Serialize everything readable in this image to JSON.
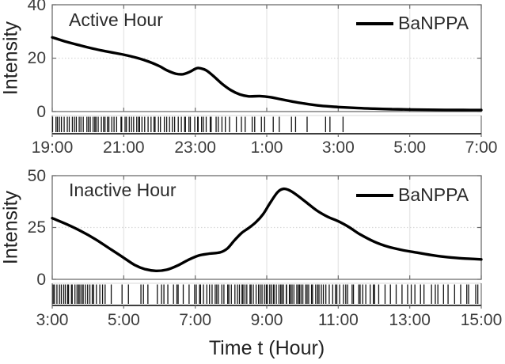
{
  "figure": {
    "xlabel": "Time t (Hour)",
    "background": "#ffffff",
    "curve_color": "#000000",
    "axis_color": "#6e6e6e",
    "grid_vertical_color": "#e8e8e8",
    "grid_horizontal_color": "#d9d9d9",
    "tick_text_color": "#3d3d3d",
    "rug_mark_color": "#141414"
  },
  "chart_data": [
    {
      "type": "line",
      "title": "Active Hour",
      "ylabel": "Intensity",
      "grid": true,
      "legend_position": "top-right",
      "legend": [
        {
          "label": "BaNPPA",
          "color": "#000000"
        }
      ],
      "x_range_hours": [
        19,
        31
      ],
      "ylim": [
        0,
        40
      ],
      "yticks": [
        0,
        20,
        40
      ],
      "xtick_hours": [
        19,
        21,
        23,
        25,
        27,
        29,
        31
      ],
      "xtick_labels": [
        "19:00",
        "21:00",
        "23:00",
        "1:00",
        "3:00",
        "5:00",
        "7:00"
      ],
      "series": [
        {
          "name": "BaNPPA",
          "color": "#000000",
          "points": [
            [
              19,
              27.8
            ],
            [
              19.4,
              26.1
            ],
            [
              19.8,
              24.7
            ],
            [
              20.2,
              23.4
            ],
            [
              20.6,
              22.3
            ],
            [
              21,
              21.3
            ],
            [
              21.4,
              20.0
            ],
            [
              21.7,
              18.7
            ],
            [
              22,
              17.0
            ],
            [
              22.2,
              15.5
            ],
            [
              22.45,
              14.2
            ],
            [
              22.65,
              14.0
            ],
            [
              22.85,
              14.9
            ],
            [
              23,
              16.0
            ],
            [
              23.1,
              16.3
            ],
            [
              23.3,
              15.5
            ],
            [
              23.5,
              13.4
            ],
            [
              23.75,
              10.4
            ],
            [
              24,
              8.0
            ],
            [
              24.25,
              6.4
            ],
            [
              24.5,
              5.7
            ],
            [
              24.8,
              5.8
            ],
            [
              25.1,
              5.4
            ],
            [
              25.4,
              4.6
            ],
            [
              25.7,
              3.8
            ],
            [
              26,
              3.1
            ],
            [
              26.5,
              2.2
            ],
            [
              27,
              1.7
            ],
            [
              27.5,
              1.35
            ],
            [
              28,
              1.1
            ],
            [
              28.5,
              0.9
            ],
            [
              29,
              0.78
            ],
            [
              29.5,
              0.68
            ],
            [
              30,
              0.62
            ],
            [
              30.5,
              0.58
            ],
            [
              31,
              0.55
            ]
          ]
        }
      ],
      "rug_events": {
        "bin_width_hours": 0.5,
        "bins": [
          [
            19,
            8
          ],
          [
            19.5,
            7
          ],
          [
            20,
            9
          ],
          [
            20.5,
            7
          ],
          [
            21,
            8
          ],
          [
            21.5,
            7
          ],
          [
            22,
            6
          ],
          [
            22.5,
            7
          ],
          [
            23,
            7
          ],
          [
            23.5,
            5
          ],
          [
            24,
            3
          ],
          [
            24.5,
            4
          ],
          [
            25,
            2
          ],
          [
            25.5,
            2
          ],
          [
            26,
            1
          ],
          [
            26.5,
            2
          ],
          [
            27,
            1
          ]
        ]
      }
    },
    {
      "type": "line",
      "title": "Inactive Hour",
      "ylabel": "Intensity",
      "grid": true,
      "legend_position": "top-right",
      "legend": [
        {
          "label": "BaNPPA",
          "color": "#000000"
        }
      ],
      "x_range_hours": [
        3,
        15
      ],
      "ylim": [
        0,
        50
      ],
      "yticks": [
        0,
        25,
        50
      ],
      "xtick_hours": [
        3,
        5,
        7,
        9,
        11,
        13,
        15
      ],
      "xtick_labels": [
        "3:00",
        "5:00",
        "7:00",
        "9:00",
        "11:00",
        "13:00",
        "15:00"
      ],
      "series": [
        {
          "name": "BaNPPA",
          "color": "#000000",
          "points": [
            [
              3,
              29.5
            ],
            [
              3.4,
              26.6
            ],
            [
              3.8,
              23.3
            ],
            [
              4.2,
              19.4
            ],
            [
              4.6,
              14.9
            ],
            [
              5,
              10.4
            ],
            [
              5.3,
              7.0
            ],
            [
              5.6,
              4.9
            ],
            [
              5.9,
              4.1
            ],
            [
              6.2,
              4.6
            ],
            [
              6.5,
              6.6
            ],
            [
              6.8,
              9.3
            ],
            [
              7.1,
              11.5
            ],
            [
              7.4,
              12.4
            ],
            [
              7.7,
              13.0
            ],
            [
              7.9,
              14.9
            ],
            [
              8.1,
              18.9
            ],
            [
              8.3,
              22.4
            ],
            [
              8.5,
              24.8
            ],
            [
              8.7,
              27.6
            ],
            [
              8.9,
              31.5
            ],
            [
              9.1,
              37.0
            ],
            [
              9.3,
              42.0
            ],
            [
              9.45,
              43.6
            ],
            [
              9.6,
              43.2
            ],
            [
              9.8,
              41.2
            ],
            [
              10.1,
              37.2
            ],
            [
              10.4,
              33.2
            ],
            [
              10.7,
              30.2
            ],
            [
              11,
              28.0
            ],
            [
              11.3,
              25.2
            ],
            [
              11.6,
              21.8
            ],
            [
              12,
              18.2
            ],
            [
              12.4,
              15.7
            ],
            [
              12.8,
              14.1
            ],
            [
              13.2,
              12.9
            ],
            [
              13.6,
              11.7
            ],
            [
              14,
              10.8
            ],
            [
              14.4,
              10.2
            ],
            [
              14.7,
              9.9
            ],
            [
              15,
              9.6
            ]
          ]
        }
      ],
      "rug_events": {
        "bin_width_hours": 0.5,
        "bins": [
          [
            3,
            9
          ],
          [
            3.5,
            10
          ],
          [
            4,
            7
          ],
          [
            4.5,
            2
          ],
          [
            5,
            2
          ],
          [
            5.5,
            3
          ],
          [
            6,
            5
          ],
          [
            6.5,
            4
          ],
          [
            7,
            7
          ],
          [
            7.5,
            7
          ],
          [
            8,
            8
          ],
          [
            8.5,
            9
          ],
          [
            9,
            10
          ],
          [
            9.5,
            10
          ],
          [
            10,
            9
          ],
          [
            10.5,
            7
          ],
          [
            11,
            6
          ],
          [
            11.5,
            6
          ],
          [
            12,
            4
          ],
          [
            12.5,
            3
          ],
          [
            13,
            4
          ],
          [
            13.5,
            4
          ],
          [
            14,
            3
          ],
          [
            14.5,
            4
          ]
        ]
      }
    }
  ]
}
